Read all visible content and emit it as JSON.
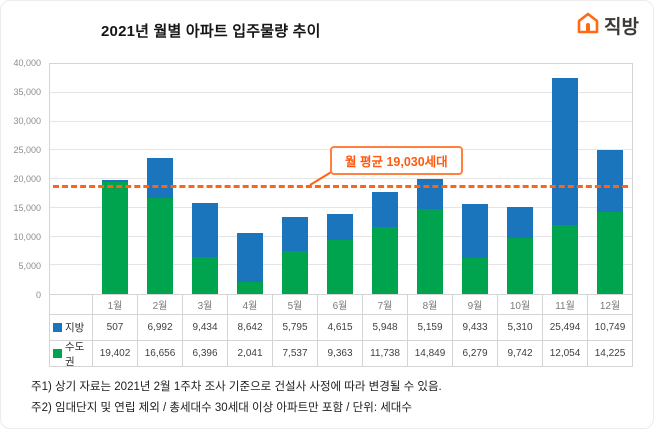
{
  "header": {
    "title": "2021년 월별 아파트 입주물량 추이",
    "logo_text": "직방"
  },
  "chart_data": {
    "type": "bar",
    "stacked": true,
    "categories": [
      "1월",
      "2월",
      "3월",
      "4월",
      "5월",
      "6월",
      "7월",
      "8월",
      "9월",
      "10월",
      "11월",
      "12월"
    ],
    "series": [
      {
        "name": "지방",
        "color": "#1b75bc",
        "values": [
          507,
          6992,
          9434,
          8642,
          5795,
          4615,
          5948,
          5159,
          9433,
          5310,
          25494,
          10749
        ]
      },
      {
        "name": "수도권",
        "color": "#00a44f",
        "values": [
          19402,
          16656,
          6396,
          2041,
          7537,
          9363,
          11738,
          14849,
          6279,
          9742,
          12054,
          14225
        ]
      }
    ],
    "ylim": [
      0,
      40000
    ],
    "ytick_step": 5000,
    "grid": true,
    "legend_position": "table-left",
    "average_line": {
      "value": 19030,
      "label": "월 평균 19,030세대",
      "color": "#ff6413"
    }
  },
  "footnotes": [
    "주1) 상기 자료는 2021년 2월 1주차 조사 기준으로 건설사 사정에 따라 변경될 수 있음.",
    "주2) 임대단지 및 연립 제외 / 총세대수 30세대 이상 아파트만 포함 / 단위: 세대수"
  ]
}
